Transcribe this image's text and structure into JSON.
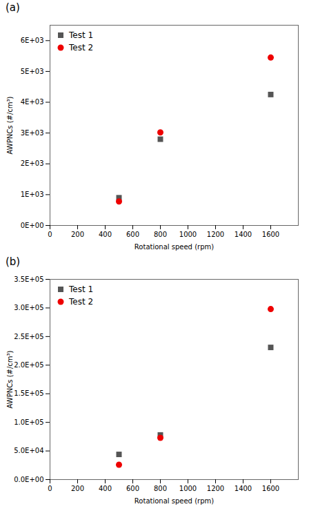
{
  "chart_data": [
    {
      "type": "scatter",
      "title": "(a)",
      "xlabel": "Rotational speed (rpm)",
      "ylabel": "AWPNCs (#/cm³)",
      "x": [
        500,
        800,
        1600
      ],
      "series": [
        {
          "name": "Test 1",
          "color": "#555555",
          "marker": "square",
          "values": [
            900,
            2800,
            4250
          ]
        },
        {
          "name": "Test 2",
          "color": "#ee0000",
          "marker": "circle",
          "values": [
            780,
            3020,
            5450
          ]
        }
      ],
      "xlim": [
        0,
        1800
      ],
      "ylim": [
        0,
        6500
      ],
      "xticks": [
        0,
        200,
        400,
        600,
        800,
        1000,
        1200,
        1400,
        1600
      ],
      "yticks": [
        {
          "value": 0,
          "label": "0E+00"
        },
        {
          "value": 1000,
          "label": "1E+03"
        },
        {
          "value": 2000,
          "label": "2E+03"
        },
        {
          "value": 3000,
          "label": "3E+03"
        },
        {
          "value": 4000,
          "label": "4E+03"
        },
        {
          "value": 5000,
          "label": "5E+03"
        },
        {
          "value": 6000,
          "label": "6E+03"
        }
      ],
      "legend": "upper left",
      "grid": false
    },
    {
      "type": "scatter",
      "title": "(b)",
      "xlabel": "Rotational speed (rpm)",
      "ylabel": "AWPNCs (#/cm³)",
      "x": [
        500,
        800,
        1600
      ],
      "series": [
        {
          "name": "Test 1",
          "color": "#555555",
          "marker": "square",
          "values": [
            44000,
            78000,
            231000
          ]
        },
        {
          "name": "Test 2",
          "color": "#ee0000",
          "marker": "circle",
          "values": [
            26000,
            73000,
            298000
          ]
        }
      ],
      "xlim": [
        0,
        1800
      ],
      "ylim": [
        0,
        350000
      ],
      "xticks": [
        0,
        200,
        400,
        600,
        800,
        1000,
        1200,
        1400,
        1600
      ],
      "yticks": [
        {
          "value": 0,
          "label": "0.0E+00"
        },
        {
          "value": 50000,
          "label": "5.0E+04"
        },
        {
          "value": 100000,
          "label": "1.0E+05"
        },
        {
          "value": 150000,
          "label": "1.5E+05"
        },
        {
          "value": 200000,
          "label": "2.0E+05"
        },
        {
          "value": 250000,
          "label": "2.5E+05"
        },
        {
          "value": 300000,
          "label": "3.0E+05"
        },
        {
          "value": 350000,
          "label": "3.5E+05"
        }
      ],
      "legend": "upper left",
      "grid": false
    }
  ]
}
